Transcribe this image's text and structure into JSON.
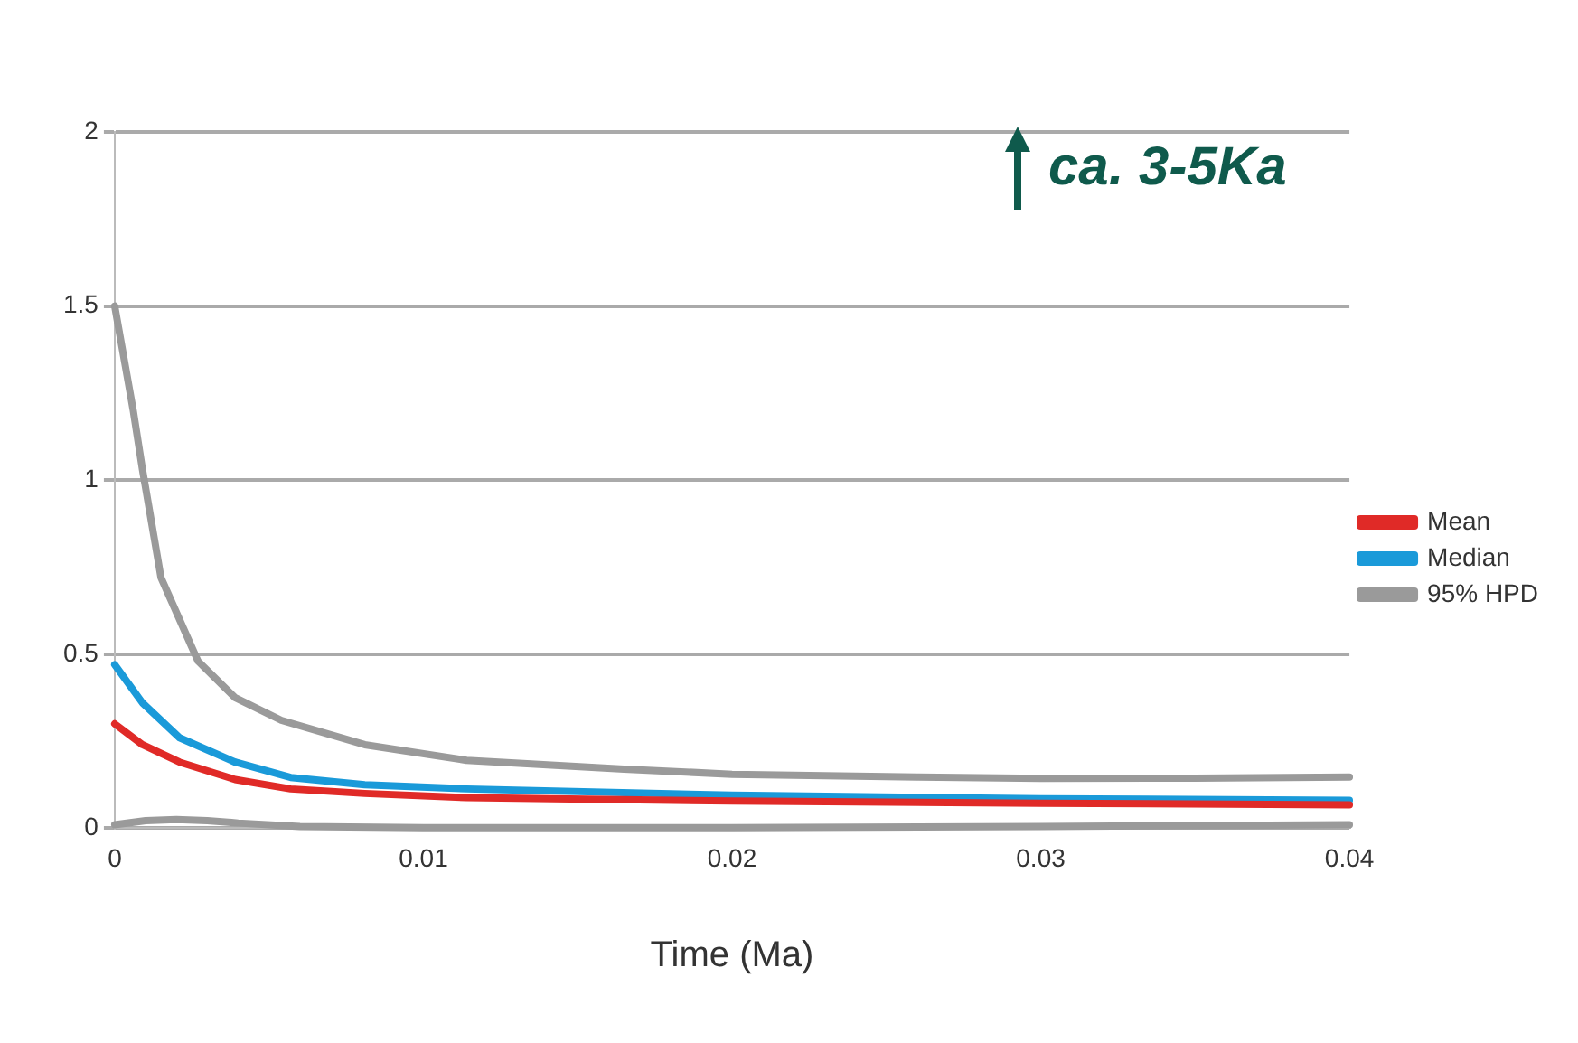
{
  "chart_data": {
    "type": "line",
    "xlabel": "Time (Ma)",
    "annotations": [
      "ca. 3-5Ka"
    ],
    "xlim": [
      0,
      0.04
    ],
    "xticks": [
      0,
      0.01,
      0.02,
      0.03,
      0.04
    ],
    "ylim": [
      0,
      2
    ],
    "yticks": [
      0,
      0.5,
      1,
      1.5,
      2
    ],
    "grid": "y",
    "legend": "right",
    "marker": "none",
    "line_style": "solid",
    "series": [
      {
        "name": "Mean",
        "color": "#e02a27",
        "x": [
          0,
          0.0009,
          0.0021,
          0.0039,
          0.0057,
          0.0081,
          0.0114,
          0.02,
          0.03,
          0.04
        ],
        "values": [
          0.3,
          0.24,
          0.19,
          0.14,
          0.113,
          0.1,
          0.088,
          0.078,
          0.072,
          0.067
        ]
      },
      {
        "name": "Median",
        "color": "#1a9ad9",
        "x": [
          0,
          0.0009,
          0.0021,
          0.0039,
          0.0057,
          0.0081,
          0.0114,
          0.02,
          0.03,
          0.04
        ],
        "values": [
          0.47,
          0.36,
          0.26,
          0.19,
          0.146,
          0.125,
          0.113,
          0.095,
          0.085,
          0.08
        ]
      },
      {
        "name": "95% HPD",
        "color": "#9a9a9a",
        "x": [
          0,
          0.0006,
          0.0009,
          0.0015,
          0.0027,
          0.0039,
          0.0054,
          0.0081,
          0.0114,
          0.0165,
          0.02,
          0.026,
          0.03,
          0.035,
          0.04
        ],
        "values": [
          1.5,
          1.2,
          1.03,
          0.72,
          0.48,
          0.375,
          0.31,
          0.24,
          0.195,
          0.17,
          0.155,
          0.147,
          0.143,
          0.144,
          0.147
        ]
      },
      {
        "color": "#9a9a9a",
        "x": [
          0,
          0.001,
          0.002,
          0.003,
          0.004,
          0.006,
          0.01,
          0.02,
          0.03,
          0.04
        ],
        "values": [
          0.01,
          0.022,
          0.025,
          0.022,
          0.015,
          0.005,
          0.002,
          0.002,
          0.005,
          0.01
        ]
      }
    ]
  }
}
